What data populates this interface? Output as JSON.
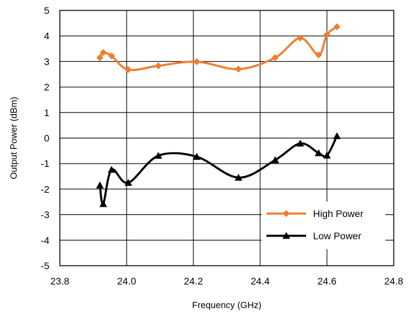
{
  "chart_data": {
    "type": "line",
    "title": "",
    "xlabel": "Frequency (GHz)",
    "ylabel": "Output Power  (dBm)",
    "xlim": [
      23.8,
      24.8
    ],
    "ylim": [
      -5,
      5
    ],
    "x_ticks": [
      23.8,
      24.0,
      24.2,
      24.4,
      24.6,
      24.8
    ],
    "x_tick_labels": [
      "23.8",
      "24.0",
      "24.2",
      "24.4",
      "24.6",
      "24.8"
    ],
    "y_ticks": [
      -5,
      -4,
      -3,
      -2,
      -1,
      0,
      1,
      2,
      3,
      4,
      5
    ],
    "y_tick_labels": [
      "-5",
      "-4",
      "-3",
      "-2",
      "-1",
      "0",
      "1",
      "2",
      "3",
      "4",
      "5"
    ],
    "grid": true,
    "smooth": true,
    "legend_position": "bottom-right",
    "series": [
      {
        "name": "High Power",
        "color": "#ED7D31",
        "marker": "diamond",
        "x": [
          23.92,
          23.93,
          23.955,
          24.005,
          24.095,
          24.21,
          24.335,
          24.445,
          24.52,
          24.575,
          24.6,
          24.63
        ],
        "y": [
          3.15,
          3.35,
          3.22,
          2.68,
          2.83,
          2.99,
          2.7,
          3.15,
          3.92,
          3.26,
          4.05,
          4.36
        ]
      },
      {
        "name": "Low Power",
        "color": "#000000",
        "marker": "triangle",
        "x": [
          23.92,
          23.93,
          23.955,
          24.005,
          24.095,
          24.21,
          24.335,
          24.445,
          24.52,
          24.575,
          24.6,
          24.63
        ],
        "y": [
          -1.85,
          -2.58,
          -1.24,
          -1.75,
          -0.69,
          -0.73,
          -1.55,
          -0.86,
          -0.21,
          -0.59,
          -0.68,
          0.08
        ]
      }
    ]
  }
}
